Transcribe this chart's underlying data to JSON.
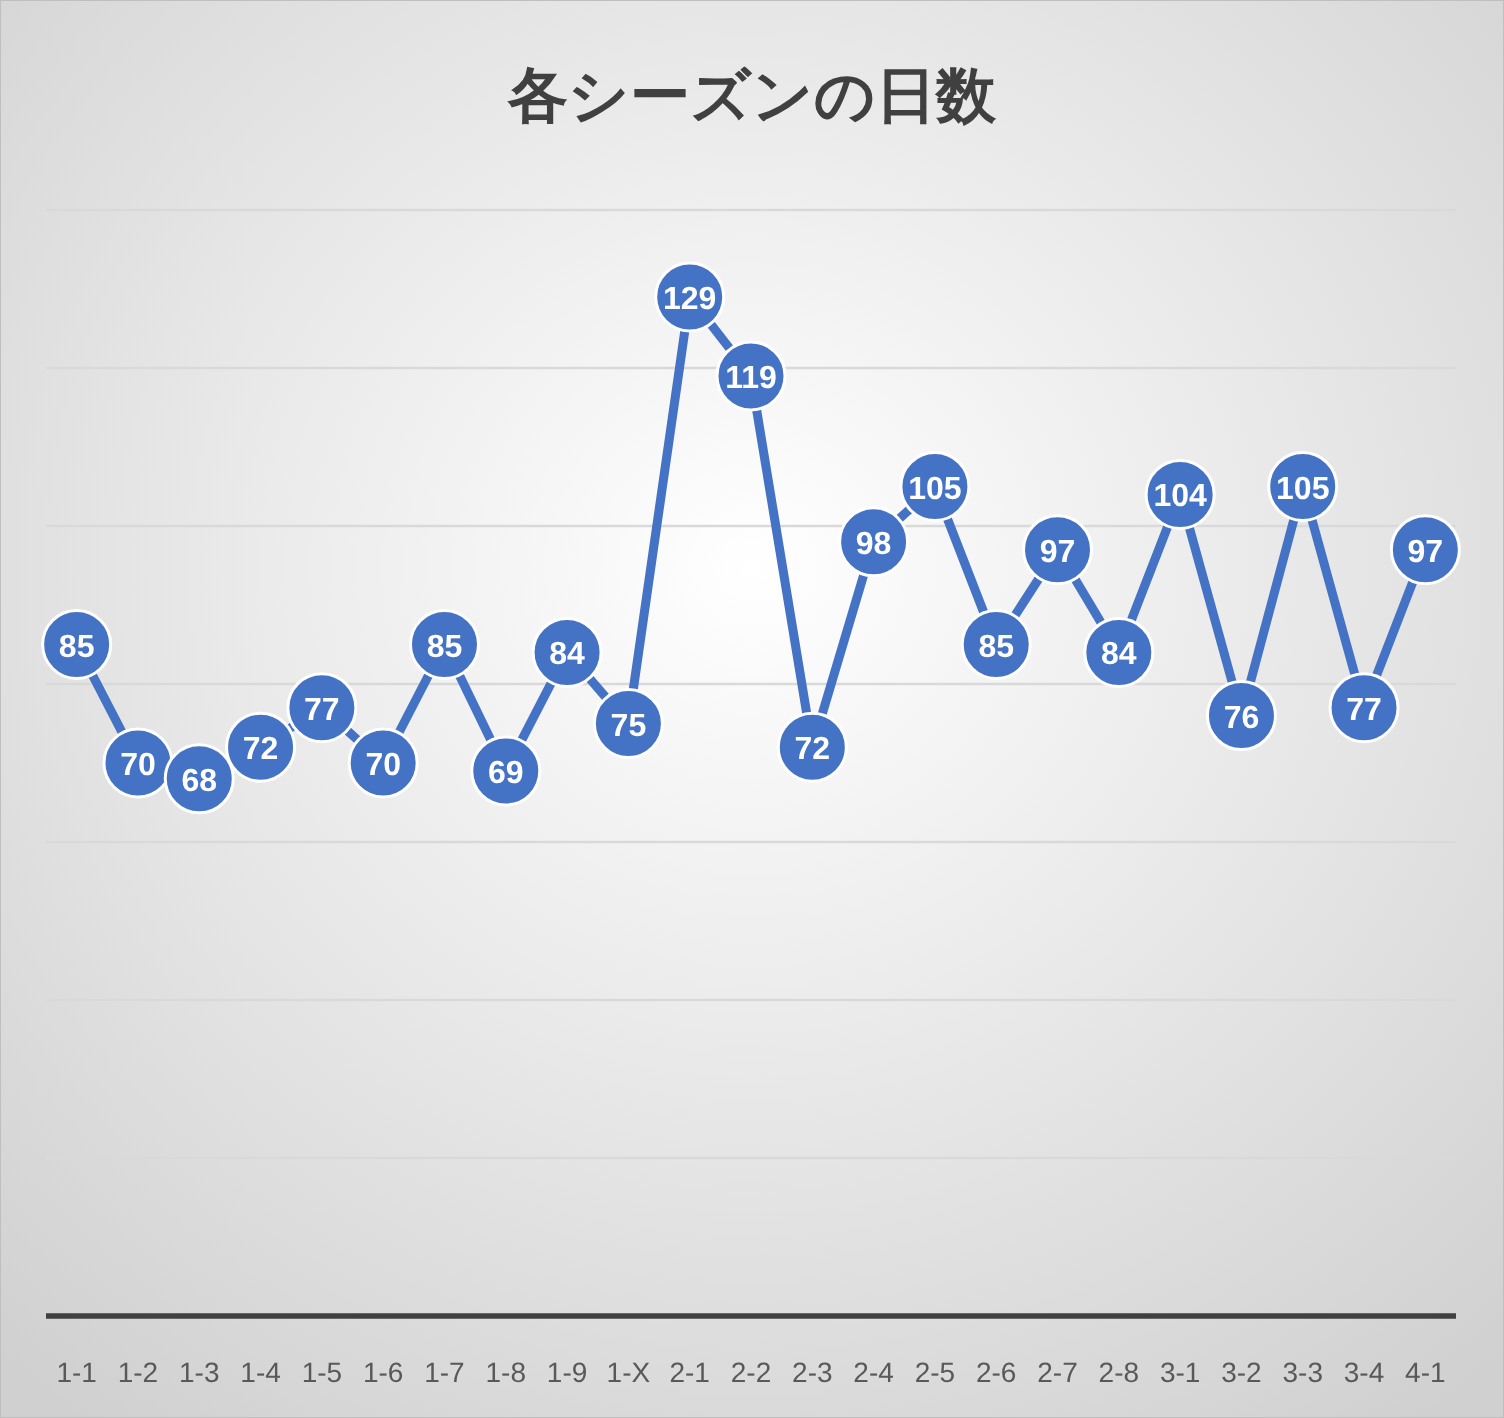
{
  "chart_data": {
    "type": "line",
    "title": "各シーズンの日数",
    "categories": [
      "1-1",
      "1-2",
      "1-3",
      "1-4",
      "1-5",
      "1-6",
      "1-7",
      "1-8",
      "1-9",
      "1-X",
      "2-1",
      "2-2",
      "2-3",
      "2-4",
      "2-5",
      "2-6",
      "2-7",
      "2-8",
      "3-1",
      "3-2",
      "3-3",
      "3-4",
      "4-1"
    ],
    "values": [
      85,
      70,
      68,
      72,
      77,
      70,
      85,
      69,
      84,
      75,
      129,
      119,
      72,
      98,
      105,
      85,
      97,
      84,
      104,
      76,
      105,
      77,
      97
    ],
    "color": "#4472c4",
    "ylim": [
      0,
      140
    ],
    "yticks": [
      {
        "value": 0,
        "label": null
      },
      {
        "value": 20,
        "label": null
      },
      {
        "value": 40,
        "label": null
      },
      {
        "value": 60,
        "label": null
      },
      {
        "value": 80,
        "label": null
      },
      {
        "value": 100,
        "label": null
      },
      {
        "value": 120,
        "label": null
      },
      {
        "value": 140,
        "label": null
      }
    ],
    "grid": "y",
    "data_labels": true,
    "marker": "circle",
    "tick_labels": "x"
  }
}
